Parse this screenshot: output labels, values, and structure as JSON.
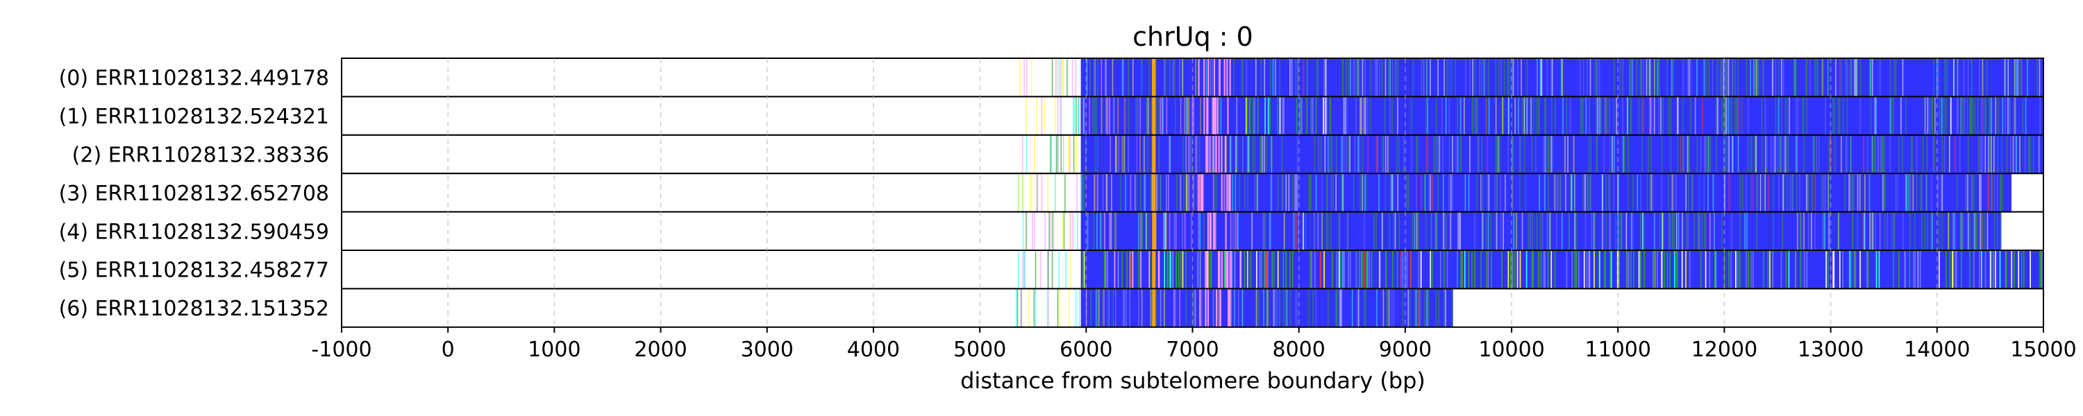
{
  "chart_data": {
    "type": "heatmap",
    "title": "chrUq : 0",
    "xlabel": "distance from subtelomere boundary (bp)",
    "ylabel": "",
    "xlim": [
      -1000,
      15000
    ],
    "xticks": [
      "-1000",
      "0",
      "1000",
      "2000",
      "3000",
      "4000",
      "5000",
      "6000",
      "7000",
      "8000",
      "9000",
      "10000",
      "11000",
      "12000",
      "13000",
      "14000",
      "15000"
    ],
    "grid": "vertical dashed",
    "reads": [
      {
        "label": "(0) ERR11028132.449178",
        "start": 5300,
        "dense_start": 5950,
        "end": 15000
      },
      {
        "label": "(1) ERR11028132.524321",
        "start": 5300,
        "dense_start": 5950,
        "end": 15000
      },
      {
        "label": "(2) ERR11028132.38336",
        "start": 5350,
        "dense_start": 5950,
        "end": 15000
      },
      {
        "label": "(3) ERR11028132.652708",
        "start": 5350,
        "dense_start": 5950,
        "end": 14700
      },
      {
        "label": "(4) ERR11028132.590459",
        "start": 5350,
        "dense_start": 5950,
        "end": 14600
      },
      {
        "label": "(5) ERR11028132.458277",
        "start": 5300,
        "dense_start": 5950,
        "end": 15000
      },
      {
        "label": "(6) ERR11028132.151352",
        "start": 5300,
        "dense_start": 5950,
        "end": 9450
      }
    ],
    "colors": {
      "main": "#3232ff",
      "secondary": [
        "#2ca02c",
        "#ffff33",
        "#33ffff",
        "#ff99ff",
        "#ffa500",
        "#ff3333",
        "#ffffff"
      ]
    }
  }
}
